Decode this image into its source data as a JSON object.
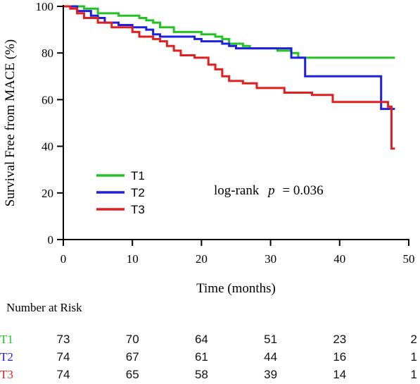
{
  "chart_data": {
    "type": "line",
    "subtype": "kaplan-meier",
    "ylabel": "Survival Free from MACE (%)",
    "xlabel": "Time (months)",
    "xlim": [
      0,
      50
    ],
    "ylim": [
      0,
      100
    ],
    "xticks": [
      0,
      10,
      20,
      30,
      40,
      50
    ],
    "yticks": [
      0,
      20,
      40,
      60,
      80,
      100
    ],
    "grid": false,
    "legend_position": "lower-left",
    "annotation": {
      "prefix": "log-rank",
      "p_symbol": "p",
      "suffix": "= 0.036"
    },
    "series": [
      {
        "name": "T1",
        "color": "#22c322",
        "steps": [
          [
            0,
            100
          ],
          [
            3,
            99
          ],
          [
            5,
            97
          ],
          [
            8,
            96
          ],
          [
            11,
            95
          ],
          [
            12,
            94
          ],
          [
            13,
            93
          ],
          [
            14,
            91
          ],
          [
            16,
            89
          ],
          [
            20,
            88
          ],
          [
            22,
            87
          ],
          [
            23,
            86
          ],
          [
            24,
            84
          ],
          [
            26,
            83
          ],
          [
            27,
            82
          ],
          [
            31,
            81
          ],
          [
            33,
            80
          ],
          [
            34,
            78
          ],
          [
            48,
            78
          ]
        ]
      },
      {
        "name": "T2",
        "color": "#1f1fe0",
        "steps": [
          [
            0,
            100
          ],
          [
            2,
            98
          ],
          [
            4,
            96
          ],
          [
            5,
            95
          ],
          [
            6,
            93
          ],
          [
            8,
            92
          ],
          [
            10,
            91
          ],
          [
            12,
            90
          ],
          [
            13,
            88
          ],
          [
            14,
            87
          ],
          [
            19,
            86
          ],
          [
            20,
            85
          ],
          [
            23,
            84
          ],
          [
            24,
            83
          ],
          [
            25,
            82
          ],
          [
            32,
            82
          ],
          [
            33,
            78
          ],
          [
            35,
            70
          ],
          [
            46,
            56
          ],
          [
            48,
            56
          ]
        ]
      },
      {
        "name": "T3",
        "color": "#e01f1f",
        "steps": [
          [
            0,
            100
          ],
          [
            1,
            99
          ],
          [
            2,
            97
          ],
          [
            3,
            95
          ],
          [
            5,
            93
          ],
          [
            7,
            91
          ],
          [
            10,
            89
          ],
          [
            11,
            87
          ],
          [
            13,
            86
          ],
          [
            14,
            85
          ],
          [
            15,
            83
          ],
          [
            16,
            81
          ],
          [
            17,
            79
          ],
          [
            19,
            78
          ],
          [
            21,
            75
          ],
          [
            22,
            73
          ],
          [
            23,
            70
          ],
          [
            24,
            68
          ],
          [
            26,
            67
          ],
          [
            28,
            65
          ],
          [
            32,
            63
          ],
          [
            36,
            62
          ],
          [
            39,
            59
          ],
          [
            47,
            57
          ],
          [
            47.5,
            39
          ],
          [
            48,
            39
          ]
        ]
      }
    ],
    "risk_table": {
      "title": "Number at Risk",
      "times": [
        0,
        10,
        20,
        30,
        40,
        50
      ],
      "rows": [
        {
          "name": "T1",
          "color": "#22c322",
          "values": [
            "73",
            "70",
            "64",
            "51",
            "23",
            "2"
          ]
        },
        {
          "name": "T2",
          "color": "#1f1fe0",
          "values": [
            "74",
            "67",
            "61",
            "44",
            "16",
            "1"
          ]
        },
        {
          "name": "T3",
          "color": "#e01f1f",
          "values": [
            "74",
            "65",
            "58",
            "39",
            "14",
            "1"
          ]
        }
      ]
    }
  }
}
